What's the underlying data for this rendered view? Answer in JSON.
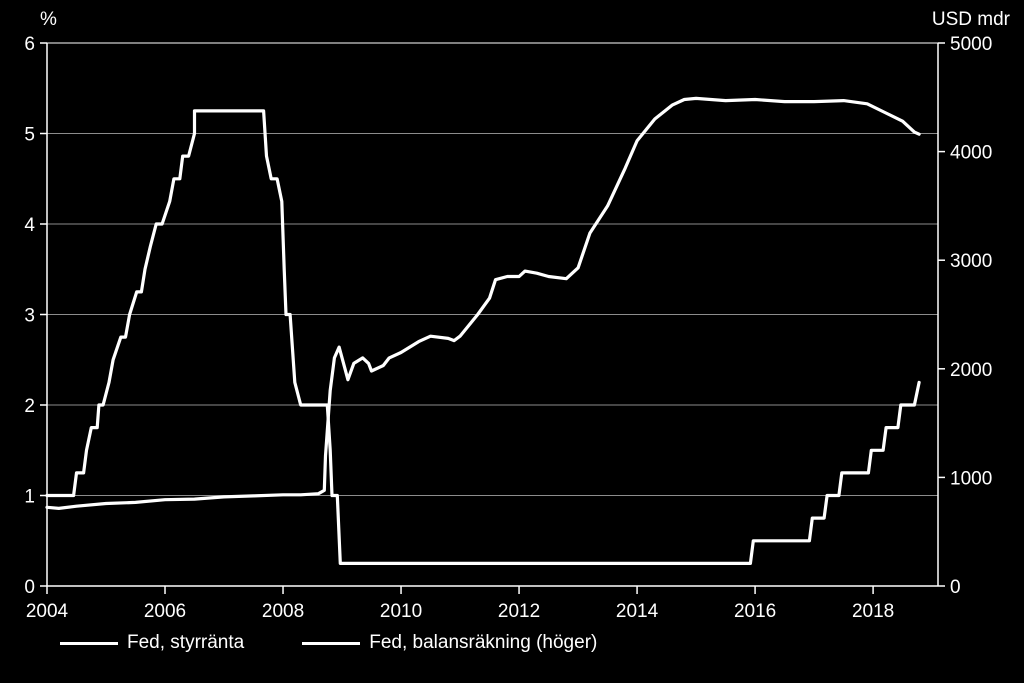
{
  "chart_data": {
    "type": "line",
    "title": "",
    "left_axis_unit": "%",
    "right_axis_unit": "USD mdr",
    "x_ticks": [
      "2004",
      "2006",
      "2008",
      "2010",
      "2012",
      "2014",
      "2016",
      "2018"
    ],
    "xlim": [
      2004,
      2019.1
    ],
    "y_left_ticks": [
      "0",
      "1",
      "2",
      "3",
      "4",
      "5",
      "6"
    ],
    "ylim_left": [
      0,
      6
    ],
    "y_right_ticks": [
      "0",
      "1000",
      "2000",
      "3000",
      "4000",
      "5000"
    ],
    "ylim_right": [
      0,
      5000
    ],
    "grid": true,
    "series": [
      {
        "name": "Fed, styrränta",
        "axis": "left",
        "color": "#ffffff",
        "points": [
          [
            2004.0,
            1.0
          ],
          [
            2004.45,
            1.0
          ],
          [
            2004.5,
            1.25
          ],
          [
            2004.62,
            1.25
          ],
          [
            2004.67,
            1.5
          ],
          [
            2004.75,
            1.75
          ],
          [
            2004.85,
            1.75
          ],
          [
            2004.88,
            2.0
          ],
          [
            2004.95,
            2.0
          ],
          [
            2005.05,
            2.25
          ],
          [
            2005.12,
            2.5
          ],
          [
            2005.25,
            2.75
          ],
          [
            2005.33,
            2.75
          ],
          [
            2005.4,
            3.0
          ],
          [
            2005.52,
            3.25
          ],
          [
            2005.6,
            3.25
          ],
          [
            2005.66,
            3.5
          ],
          [
            2005.75,
            3.75
          ],
          [
            2005.85,
            4.0
          ],
          [
            2005.95,
            4.0
          ],
          [
            2006.08,
            4.25
          ],
          [
            2006.15,
            4.5
          ],
          [
            2006.25,
            4.5
          ],
          [
            2006.3,
            4.75
          ],
          [
            2006.4,
            4.75
          ],
          [
            2006.5,
            5.0
          ],
          [
            2006.5,
            5.25
          ],
          [
            2007.67,
            5.25
          ],
          [
            2007.72,
            4.75
          ],
          [
            2007.8,
            4.5
          ],
          [
            2007.9,
            4.5
          ],
          [
            2007.98,
            4.25
          ],
          [
            2008.02,
            3.5
          ],
          [
            2008.05,
            3.0
          ],
          [
            2008.12,
            3.0
          ],
          [
            2008.2,
            2.25
          ],
          [
            2008.3,
            2.0
          ],
          [
            2008.75,
            2.0
          ],
          [
            2008.8,
            1.5
          ],
          [
            2008.83,
            1.0
          ],
          [
            2008.92,
            1.0
          ],
          [
            2008.97,
            0.25
          ],
          [
            2015.92,
            0.25
          ],
          [
            2015.97,
            0.5
          ],
          [
            2016.92,
            0.5
          ],
          [
            2016.97,
            0.75
          ],
          [
            2017.17,
            0.75
          ],
          [
            2017.22,
            1.0
          ],
          [
            2017.42,
            1.0
          ],
          [
            2017.47,
            1.25
          ],
          [
            2017.92,
            1.25
          ],
          [
            2017.97,
            1.5
          ],
          [
            2018.17,
            1.5
          ],
          [
            2018.22,
            1.75
          ],
          [
            2018.42,
            1.75
          ],
          [
            2018.47,
            2.0
          ],
          [
            2018.7,
            2.0
          ],
          [
            2018.78,
            2.25
          ]
        ]
      },
      {
        "name": "Fed, balansräkning (höger)",
        "axis": "right",
        "color": "#ffffff",
        "points": [
          [
            2004.0,
            725
          ],
          [
            2004.2,
            715
          ],
          [
            2004.5,
            735
          ],
          [
            2005.0,
            760
          ],
          [
            2005.5,
            770
          ],
          [
            2006.0,
            795
          ],
          [
            2006.5,
            800
          ],
          [
            2007.0,
            820
          ],
          [
            2007.5,
            830
          ],
          [
            2008.0,
            840
          ],
          [
            2008.3,
            840
          ],
          [
            2008.6,
            850
          ],
          [
            2008.7,
            880
          ],
          [
            2008.72,
            1200
          ],
          [
            2008.8,
            1800
          ],
          [
            2008.87,
            2100
          ],
          [
            2008.95,
            2200
          ],
          [
            2009.05,
            2000
          ],
          [
            2009.1,
            1900
          ],
          [
            2009.2,
            2050
          ],
          [
            2009.35,
            2100
          ],
          [
            2009.45,
            2050
          ],
          [
            2009.5,
            1980
          ],
          [
            2009.7,
            2030
          ],
          [
            2009.8,
            2100
          ],
          [
            2010.0,
            2150
          ],
          [
            2010.3,
            2250
          ],
          [
            2010.5,
            2300
          ],
          [
            2010.8,
            2280
          ],
          [
            2010.9,
            2260
          ],
          [
            2011.0,
            2300
          ],
          [
            2011.3,
            2500
          ],
          [
            2011.5,
            2650
          ],
          [
            2011.6,
            2820
          ],
          [
            2011.8,
            2850
          ],
          [
            2012.0,
            2850
          ],
          [
            2012.1,
            2900
          ],
          [
            2012.3,
            2880
          ],
          [
            2012.5,
            2850
          ],
          [
            2012.8,
            2830
          ],
          [
            2013.0,
            2930
          ],
          [
            2013.2,
            3250
          ],
          [
            2013.5,
            3500
          ],
          [
            2013.8,
            3850
          ],
          [
            2014.0,
            4100
          ],
          [
            2014.3,
            4300
          ],
          [
            2014.6,
            4430
          ],
          [
            2014.8,
            4480
          ],
          [
            2015.0,
            4490
          ],
          [
            2015.5,
            4470
          ],
          [
            2016.0,
            4480
          ],
          [
            2016.5,
            4460
          ],
          [
            2017.0,
            4460
          ],
          [
            2017.5,
            4470
          ],
          [
            2017.9,
            4440
          ],
          [
            2018.2,
            4360
          ],
          [
            2018.5,
            4280
          ],
          [
            2018.7,
            4180
          ],
          [
            2018.78,
            4160
          ]
        ]
      }
    ]
  }
}
